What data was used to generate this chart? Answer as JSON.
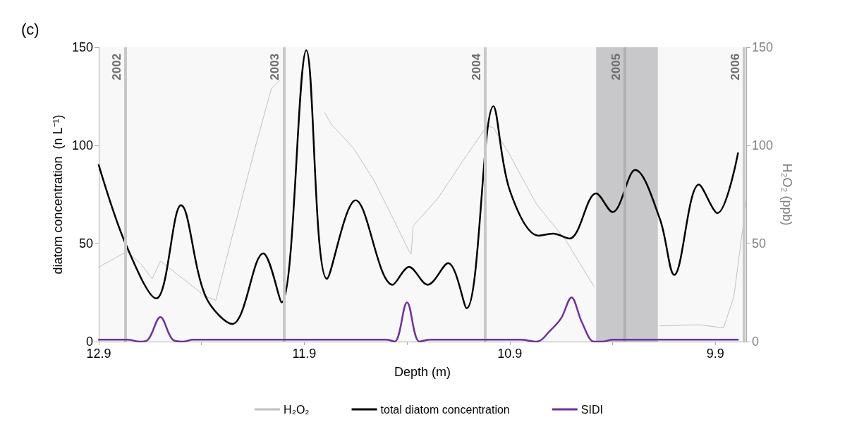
{
  "chart_data": {
    "type": "line",
    "xlabel": "Depth (m)",
    "ylabel": "diatom concentration  (n L⁻¹)",
    "y2label": "H₂O₂ (ppb)",
    "annotations": [
      "(c)",
      {
        "text": "2002",
        "x": 12.77,
        "y": 140
      },
      {
        "text": "2003",
        "x": 12.0,
        "y": 140
      },
      {
        "text": "2004",
        "x": 11.02,
        "y": 140
      },
      {
        "text": "2005",
        "x": 10.34,
        "y": 140
      },
      {
        "text": "2006",
        "x": 9.76,
        "y": 140
      }
    ],
    "xlim": [
      12.9,
      9.75
    ],
    "xticks": [
      12.9,
      {
        "value": 12.4,
        "label": null
      },
      11.9,
      {
        "value": 11.4,
        "label": null
      },
      10.9,
      {
        "value": 10.4,
        "label": null
      },
      9.9
    ],
    "ylim": [
      0,
      150
    ],
    "yticks": [
      0,
      50,
      100,
      150
    ],
    "y2lim": [
      0,
      150
    ],
    "y2ticks": [
      0,
      50,
      100,
      150
    ],
    "grid": false,
    "legend": "bottom",
    "marker": "none",
    "line_style": "solid",
    "ref_lines": [
      {
        "axis": "x",
        "value": 12.77,
        "color": "#c8c8c8"
      },
      {
        "axis": "x",
        "value": 12.0,
        "color": "#c8c8c8"
      },
      {
        "axis": "x",
        "value": 11.02,
        "color": "#c8c8c8"
      },
      {
        "axis": "x",
        "value": 10.34,
        "color": "#b0b0b2"
      },
      {
        "axis": "x",
        "value": 9.76,
        "color": "#c8c8c8"
      }
    ],
    "bands": [
      {
        "axis": "x",
        "from": 10.48,
        "to": 10.18,
        "color": "#c8c8ca"
      }
    ],
    "series": [
      {
        "name": "H₂O₂",
        "color": "#c0c0c0",
        "axis": "y2",
        "x": [
          12.9,
          12.76,
          12.69,
          12.64,
          12.6,
          12.49,
          12.38,
          12.33,
          12.25,
          12.14,
          12.06,
          12.02,
          11.9,
          11.8,
          11.77,
          11.66,
          11.56,
          11.46,
          11.39,
          11.38,
          11.37,
          11.25,
          11.11,
          11.01,
          10.98,
          10.91,
          10.77,
          10.63,
          10.49,
          10.3,
          10.17,
          9.98,
          9.86,
          9.81,
          9.77,
          9.75
        ],
        "values": [
          38,
          46,
          39,
          32,
          41,
          32,
          23,
          21,
          54,
          98.5,
          129,
          133,
          null,
          116.5,
          111,
          98.5,
          82,
          61,
          46,
          44.6,
          59,
          73,
          95,
          110,
          109,
          97,
          70,
          52,
          28,
          null,
          8,
          8.6,
          7,
          23,
          55,
          71.5
        ]
      },
      {
        "name": "total diatom concentration",
        "color": "#000000",
        "x": [
          12.9,
          12.77,
          12.62,
          12.5,
          12.38,
          12.25,
          12.1,
          12.01,
          11.89,
          11.79,
          11.65,
          11.47,
          11.39,
          11.3,
          11.2,
          11.11,
          10.98,
          10.9,
          10.76,
          10.69,
          10.61,
          10.48,
          10.4,
          10.29,
          10.17,
          10.1,
          9.98,
          9.89,
          9.79
        ],
        "values": [
          90,
          50,
          22,
          69.5,
          23,
          9,
          45,
          20,
          148.5,
          32,
          72,
          29,
          38,
          29,
          40,
          17,
          120,
          77,
          54,
          55,
          52.5,
          75.5,
          66,
          87.5,
          62.5,
          34,
          80,
          65.5,
          96
        ]
      },
      {
        "name": "SIDI",
        "color": "#7030a0",
        "x": [
          12.9,
          12.76,
          12.7,
          12.66,
          12.6,
          12.54,
          12.49,
          12.44,
          11.5,
          11.46,
          11.4,
          11.34,
          11.29,
          10.85,
          10.77,
          10.7,
          10.65,
          10.6,
          10.55,
          10.49,
          10.45,
          10.4,
          9.79
        ],
        "values": [
          1,
          1,
          0,
          1,
          12.5,
          1,
          0,
          1,
          1,
          0,
          20,
          0,
          1,
          1,
          0,
          6,
          12,
          22.5,
          10,
          0,
          0,
          1,
          1
        ]
      }
    ]
  }
}
